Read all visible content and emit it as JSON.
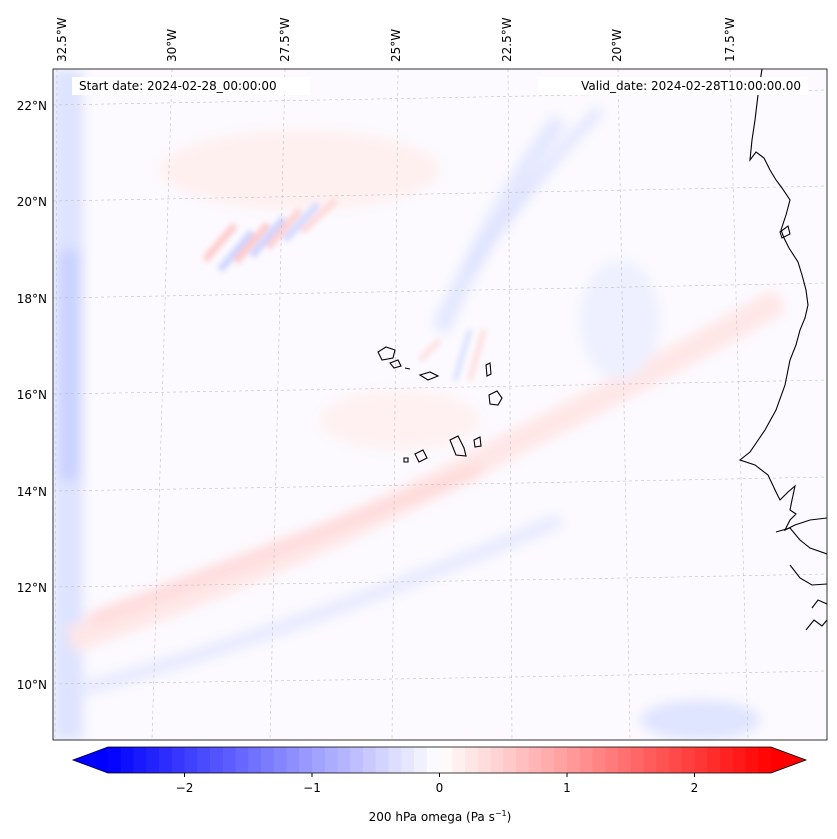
{
  "map": {
    "lon_labels": [
      "32.5°W",
      "30°W",
      "27.5°W",
      "25°W",
      "22.5°W",
      "20°W",
      "17.5°W"
    ],
    "lat_labels": [
      "22°N",
      "20°N",
      "18°N",
      "16°N",
      "14°N",
      "12°N",
      "10°N"
    ],
    "start_date": "Start date: 2024-02-28_00:00:00",
    "valid_date": "Valid_date: 2024-02-28T10:00:00.00",
    "gridlines": true,
    "colormap": "bwr",
    "colors": {
      "negative": "#0000ff",
      "zero": "#ffffff",
      "positive": "#ff0000",
      "coast": "#000000",
      "grid": "#b0b0b0"
    }
  },
  "colorbar": {
    "tick_labels": [
      "−2",
      "−1",
      "0",
      "1",
      "2"
    ],
    "range": [
      -2.6,
      2.6
    ],
    "extend": "both",
    "label": "200 hPa omega (Pa s",
    "label_sup": "−1",
    "label_end": ")"
  }
}
